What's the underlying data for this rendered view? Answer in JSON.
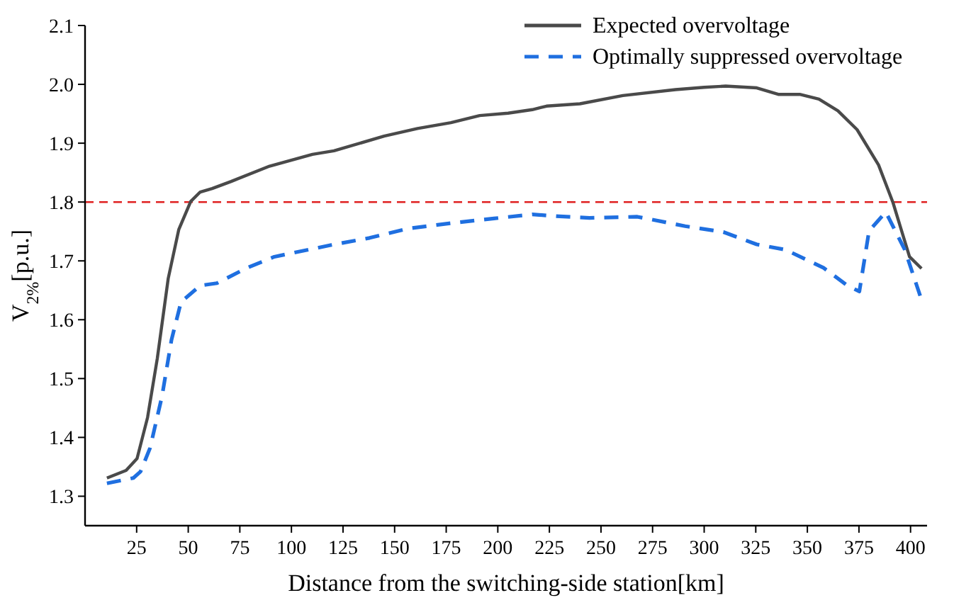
{
  "chart_data": {
    "type": "line",
    "xlabel": "Distance from the switching-side station[km]",
    "ylabel": "V$_{2%}$[p.u.]",
    "xlim": [
      0,
      408
    ],
    "xticks": [
      25,
      50,
      75,
      100,
      125,
      150,
      175,
      200,
      225,
      250,
      275,
      300,
      325,
      350,
      375,
      400
    ],
    "ylim": [
      1.25,
      2.1
    ],
    "yticks": [
      1.3,
      1.4,
      1.5,
      1.6,
      1.7,
      1.8,
      1.9,
      {
        "value": 2,
        "label": "2.0"
      },
      2.1
    ],
    "grid": false,
    "legend": "top right",
    "ref_lines": [
      {
        "axis": "y",
        "value": 1.8,
        "color": "#e02020",
        "line_style": "dashed"
      }
    ],
    "series": [
      {
        "name": "Expected overvoltage",
        "color": "#4a4a4a",
        "line_style": "solid",
        "x": [
          10.6,
          19.9,
          25.2,
          30.3,
          35,
          40.3,
          45.4,
          51.2,
          55.8,
          61.6,
          70.8,
          89.4,
          110.2,
          120.6,
          144.9,
          161.1,
          177.3,
          191.2,
          205,
          216.7,
          223.6,
          239.8,
          260.6,
          286.1,
          300,
          310.4,
          325.5,
          335.9,
          346.3,
          355.6,
          364.8,
          374.1,
          384.5,
          391.5,
          399.5,
          405.3
        ],
        "values": [
          1.331,
          1.344,
          1.364,
          1.434,
          1.534,
          1.67,
          1.753,
          1.801,
          1.817,
          1.823,
          1.835,
          1.861,
          1.881,
          1.887,
          1.912,
          1.925,
          1.935,
          1.947,
          1.951,
          1.957,
          1.963,
          1.967,
          1.981,
          1.991,
          1.995,
          1.997,
          1.994,
          1.983,
          1.983,
          1.975,
          1.955,
          1.923,
          1.863,
          1.799,
          1.707,
          1.687
        ]
      },
      {
        "name": "Optimally suppressed overvoltage",
        "color": "#1f6fe0",
        "line_style": "dashed",
        "x": [
          10.6,
          23.4,
          26.9,
          31.5,
          37.3,
          41.9,
          46.5,
          55.8,
          63.9,
          77.8,
          91.7,
          119.4,
          137.9,
          156.5,
          179.6,
          198.1,
          216.7,
          228.3,
          244.4,
          267.6,
          290.8,
          309.3,
          325.5,
          339.4,
          357.9,
          369.4,
          375.2,
          379.9,
          388,
          397.2,
          405.3
        ],
        "values": [
          1.322,
          1.331,
          1.342,
          1.382,
          1.47,
          1.566,
          1.63,
          1.658,
          1.662,
          1.687,
          1.707,
          1.727,
          1.739,
          1.755,
          1.765,
          1.772,
          1.779,
          1.776,
          1.773,
          1.775,
          1.759,
          1.749,
          1.728,
          1.719,
          1.688,
          1.658,
          1.648,
          1.751,
          1.783,
          1.719,
          1.634
        ]
      }
    ]
  }
}
